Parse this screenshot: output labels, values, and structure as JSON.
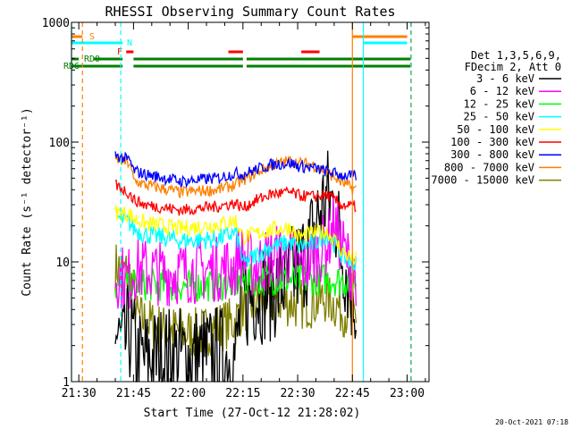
{
  "chart_data": {
    "type": "line",
    "title": "RHESSI Observing Summary Count Rates",
    "xlabel": "Start Time (27-Oct-12 21:28:02)",
    "ylabel": "Count Rate (s⁻¹ detector⁻¹)",
    "xscale": "time (minutes after 21:28:02)",
    "yscale": "log",
    "xlim": [
      0,
      98
    ],
    "ylim": [
      1,
      1000
    ],
    "x_ticks": [
      "21:30",
      "21:45",
      "22:00",
      "22:15",
      "22:30",
      "22:45",
      "23:00"
    ],
    "x_tick_minutes": [
      2,
      17,
      32,
      47,
      62,
      77,
      92
    ],
    "y_ticks": [
      "1",
      "10",
      "100",
      "1000"
    ],
    "y_tick_values": [
      1,
      10,
      100,
      1000
    ],
    "legend_header": [
      "Det 1,3,5,6,9,",
      "FDecim 2, Att 0"
    ],
    "legend_placement": "right",
    "data_window_minutes": [
      12,
      78
    ],
    "series": [
      {
        "name": "3 - 6 keV",
        "color": "#000000",
        "x": [
          12,
          14,
          16,
          18,
          25,
          35,
          45,
          47,
          50,
          55,
          60,
          62,
          65,
          70,
          72,
          74,
          77
        ],
        "values": [
          2.5,
          1.8,
          2.6,
          1.5,
          1.6,
          1.6,
          1.6,
          4.5,
          5.5,
          6,
          7,
          9,
          12,
          35,
          28,
          12,
          5
        ]
      },
      {
        "name": "6 - 12 keV",
        "color": "#ff00ff",
        "x": [
          12,
          16,
          17,
          25,
          35,
          45,
          46,
          47,
          50,
          55,
          60,
          62,
          65,
          70,
          72,
          74,
          77
        ],
        "values": [
          7.8,
          7.2,
          8.8,
          8,
          8.5,
          9,
          12,
          11,
          9,
          11,
          11.5,
          9,
          10,
          14,
          20,
          14,
          8
        ]
      },
      {
        "name": "12 - 25 keV",
        "color": "#00ff00",
        "x": [
          12,
          17,
          25,
          35,
          45,
          47,
          55,
          62,
          70,
          77
        ],
        "values": [
          6,
          6.5,
          6.4,
          6.3,
          6.6,
          7,
          7.2,
          7,
          7.2,
          6.8
        ]
      },
      {
        "name": "25 - 50 keV",
        "color": "#00ffff",
        "x": [
          12,
          16,
          17,
          20,
          30,
          40,
          45,
          47,
          50,
          55,
          60,
          62,
          66,
          70,
          74,
          77
        ],
        "values": [
          24,
          21,
          19,
          17,
          15,
          15.5,
          17.5,
          9.5,
          11,
          13.5,
          14.5,
          13.5,
          14,
          17,
          11.5,
          9.5
        ]
      },
      {
        "name": "50 - 100 keV",
        "color": "#ffff00",
        "x": [
          12,
          16,
          17,
          20,
          30,
          40,
          45,
          47,
          50,
          55,
          60,
          62,
          65,
          70,
          74,
          77
        ],
        "values": [
          26,
          25,
          23,
          21,
          19,
          20.5,
          22,
          16,
          17,
          18.5,
          19.5,
          16,
          17,
          18,
          12.5,
          10.5
        ]
      },
      {
        "name": "100 - 300 keV",
        "color": "#ff0000",
        "x": [
          12,
          16,
          17,
          20,
          30,
          40,
          45,
          47,
          50,
          55,
          60,
          62,
          66,
          70,
          74,
          77
        ],
        "values": [
          44,
          37,
          33,
          30,
          27,
          29,
          31,
          28,
          32,
          37,
          38,
          36,
          35,
          36,
          30,
          29
        ]
      },
      {
        "name": "300 - 800 keV",
        "color": "#0000ff",
        "x": [
          12,
          16,
          17,
          20,
          30,
          40,
          45,
          47,
          55,
          60,
          62,
          66,
          70,
          74,
          77
        ],
        "values": [
          78,
          70,
          58,
          54,
          47,
          50,
          55,
          54,
          65,
          67,
          63,
          61,
          57,
          53,
          52
        ]
      },
      {
        "name": "800 - 7000 keV",
        "color": "#ff8000",
        "x": [
          12,
          16,
          17,
          20,
          30,
          40,
          45,
          47,
          55,
          60,
          62,
          66,
          70,
          74,
          77
        ],
        "values": [
          72,
          66,
          48,
          44,
          38,
          40,
          44,
          48,
          64,
          70,
          67,
          65,
          56,
          46,
          41
        ]
      },
      {
        "name": "7000 - 15000 keV",
        "color": "#808000",
        "x": [
          12,
          16,
          18,
          25,
          35,
          45,
          47,
          52,
          58,
          62,
          66,
          70,
          74,
          77
        ],
        "values": [
          9.2,
          7.8,
          3.4,
          2.7,
          2.5,
          3.2,
          4.2,
          4.6,
          4.8,
          4.4,
          4.6,
          5,
          4,
          3.6
        ]
      }
    ],
    "flag_bars": [
      {
        "label": "S",
        "color": "#ff8000",
        "segments": [
          [
            0,
            3
          ],
          [
            77,
            92
          ]
        ]
      },
      {
        "label": "N",
        "color": "#00ffff",
        "segments": [
          [
            0,
            14
          ],
          [
            80,
            92
          ]
        ]
      },
      {
        "label": "F",
        "color": "#ff0000",
        "segments": [
          [
            15,
            17
          ],
          [
            43,
            47
          ],
          [
            63,
            68
          ]
        ]
      },
      {
        "label": "RD0",
        "color": "#008000",
        "segments": [
          [
            0,
            2
          ],
          [
            6,
            14
          ],
          [
            17,
            47
          ],
          [
            48,
            93
          ]
        ]
      },
      {
        "label": "RD6",
        "color": "#008000",
        "segments": [
          [
            0,
            14
          ],
          [
            17,
            47
          ],
          [
            48,
            67
          ],
          [
            67,
            93
          ]
        ]
      }
    ],
    "vertical_markers": [
      {
        "color": "#00ffff",
        "style": "solid",
        "minute": 0
      },
      {
        "color": "#ff8000",
        "style": "dashed",
        "minute": 3
      },
      {
        "color": "#00ffff",
        "style": "dashed",
        "minute": 13.5
      },
      {
        "color": "#ff8000",
        "style": "solid",
        "minute": 77
      },
      {
        "color": "#00ffff",
        "style": "solid",
        "minute": 80
      },
      {
        "color": "#ff8000",
        "style": "dashed",
        "minute": 93
      },
      {
        "color": "#00ffff",
        "style": "dashed",
        "minute": 93.2
      }
    ],
    "footer_stamp": "20-Oct-2021 07:18"
  }
}
